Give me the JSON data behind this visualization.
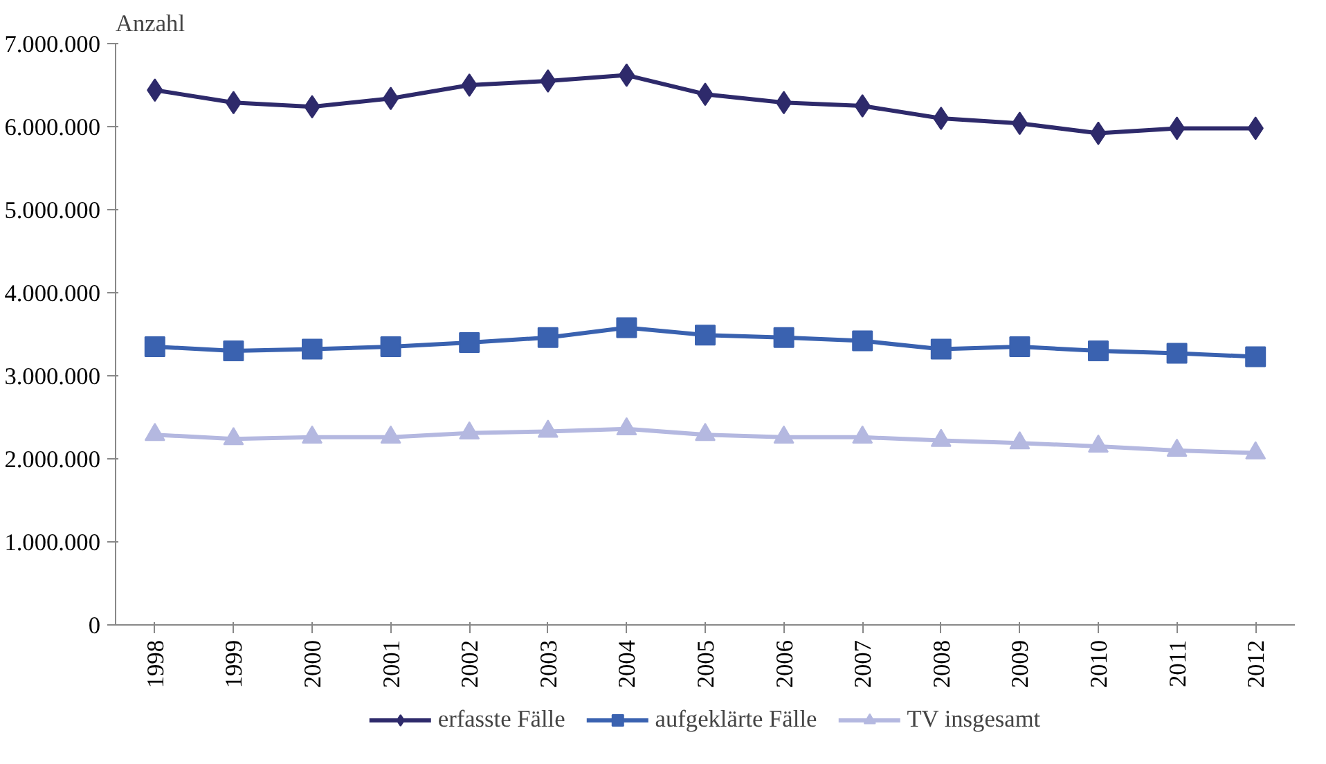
{
  "chart_data": {
    "type": "line",
    "ylabel": "Anzahl",
    "categories": [
      "1998",
      "1999",
      "2000",
      "2001",
      "2002",
      "2003",
      "2004",
      "2005",
      "2006",
      "2007",
      "2008",
      "2009",
      "2010",
      "2011",
      "2012"
    ],
    "series": [
      {
        "name": "erfasste Fälle",
        "color": "#2e2a6b",
        "marker": "diamond",
        "values": [
          6440000,
          6290000,
          6240000,
          6340000,
          6500000,
          6550000,
          6620000,
          6390000,
          6290000,
          6250000,
          6100000,
          6040000,
          5920000,
          5980000,
          5980000
        ]
      },
      {
        "name": "aufgeklärte Fälle",
        "color": "#3a62b0",
        "marker": "square",
        "values": [
          3350000,
          3300000,
          3320000,
          3350000,
          3400000,
          3460000,
          3580000,
          3490000,
          3460000,
          3420000,
          3320000,
          3350000,
          3300000,
          3270000,
          3230000
        ]
      },
      {
        "name": "TV insgesamt",
        "color": "#b4b8e0",
        "marker": "triangle",
        "values": [
          2290000,
          2240000,
          2260000,
          2260000,
          2310000,
          2330000,
          2360000,
          2290000,
          2260000,
          2260000,
          2220000,
          2190000,
          2150000,
          2100000,
          2070000
        ]
      }
    ],
    "ylim": [
      0,
      7000000
    ],
    "yticks": [
      {
        "value": 0,
        "label": "0"
      },
      {
        "value": 1000000,
        "label": "1.000.000"
      },
      {
        "value": 2000000,
        "label": "2.000.000"
      },
      {
        "value": 3000000,
        "label": "3.000.000"
      },
      {
        "value": 4000000,
        "label": "4.000.000"
      },
      {
        "value": 5000000,
        "label": "5.000.000"
      },
      {
        "value": 6000000,
        "label": "6.000.000"
      },
      {
        "value": 7000000,
        "label": "7.000.000"
      }
    ],
    "grid": false,
    "legend": "bottom",
    "line_style": "solid"
  }
}
